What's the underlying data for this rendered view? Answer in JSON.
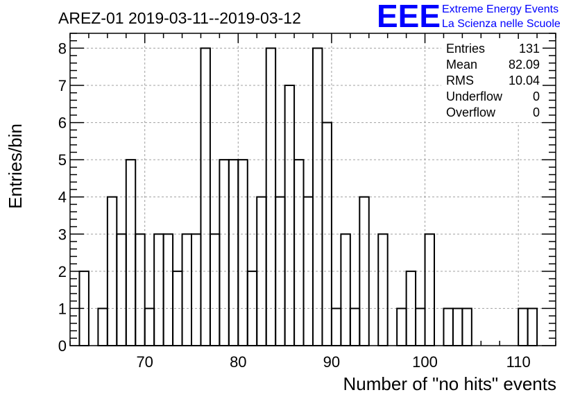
{
  "chart_data": {
    "type": "bar",
    "title": "AREZ-01 2019-03-11--2019-03-12",
    "xlabel": "Number of \"no hits\" events",
    "ylabel": "Entries/bin",
    "xlim": [
      62,
      114
    ],
    "ylim": [
      0,
      8.4
    ],
    "x_ticks": [
      70,
      80,
      90,
      100,
      110
    ],
    "y_ticks": [
      0,
      1,
      2,
      3,
      4,
      5,
      6,
      7,
      8
    ],
    "grid": true,
    "bin_width": 1,
    "bins_start": [
      63,
      64,
      65,
      66,
      67,
      68,
      69,
      70,
      71,
      72,
      73,
      74,
      75,
      76,
      77,
      78,
      79,
      80,
      81,
      82,
      83,
      84,
      85,
      86,
      87,
      88,
      89,
      90,
      91,
      92,
      93,
      94,
      95,
      96,
      97,
      98,
      99,
      100,
      101,
      102,
      103,
      104,
      105,
      106,
      107,
      108,
      109,
      110,
      111
    ],
    "values": [
      2,
      0,
      1,
      4,
      3,
      5,
      3,
      1,
      3,
      3,
      2,
      3,
      3,
      8,
      3,
      5,
      5,
      5,
      2,
      4,
      8,
      4,
      7,
      5,
      4,
      8,
      6,
      1,
      3,
      1,
      4,
      0,
      3,
      0,
      1,
      2,
      1,
      3,
      0,
      1,
      1,
      1,
      0,
      0,
      0,
      0,
      0,
      1,
      1
    ],
    "stats": [
      {
        "label": "Entries",
        "value": "131"
      },
      {
        "label": "Mean",
        "value": "82.09"
      },
      {
        "label": "RMS",
        "value": "10.04"
      },
      {
        "label": "Underflow",
        "value": "0"
      },
      {
        "label": "Overflow",
        "value": "0"
      }
    ]
  },
  "logo": {
    "letters": "EEE",
    "line1": "Extreme Energy Events",
    "line2": "La Scienza nelle Scuole",
    "color": "#0000ff"
  }
}
